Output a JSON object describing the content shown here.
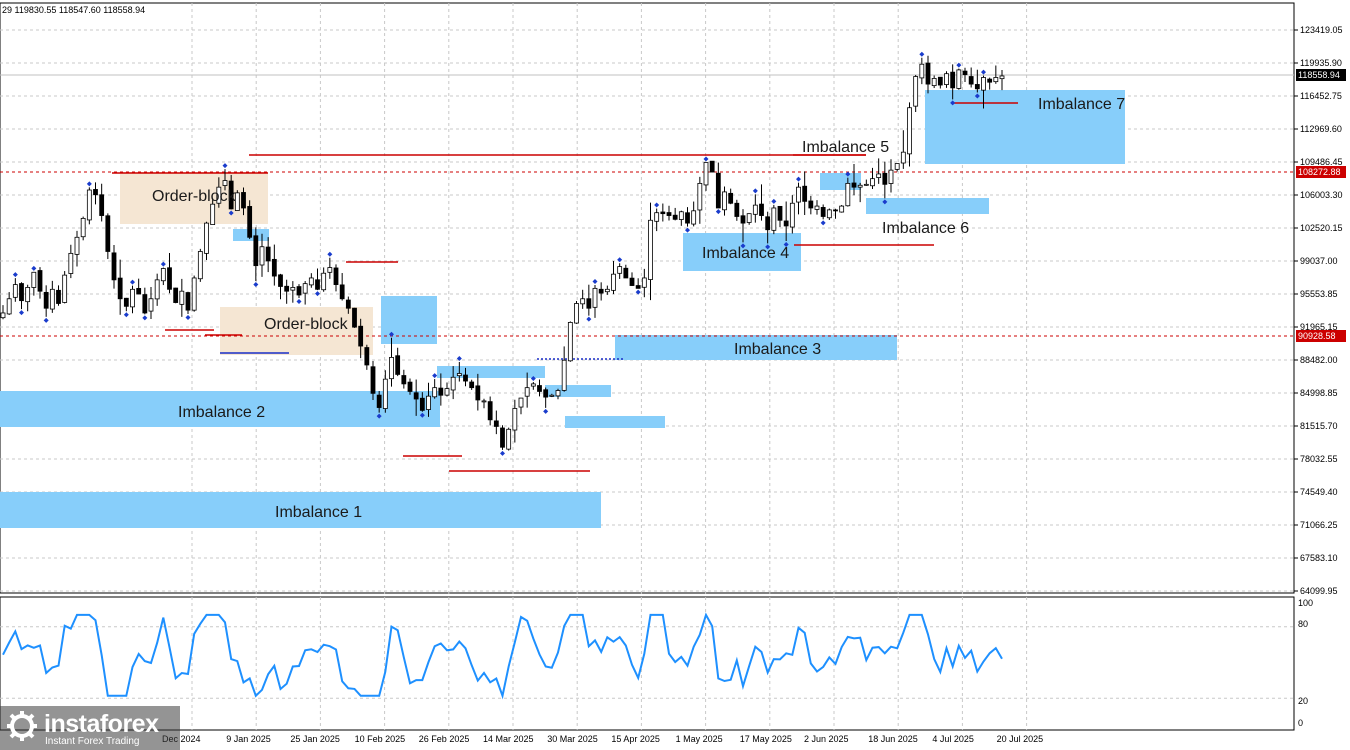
{
  "header": {
    "ohlc": "29 119830.55 118547.60 118558.94"
  },
  "price_axis": {
    "ticks": [
      "123419.05",
      "119935.90",
      "116452.75",
      "112969.60",
      "109486.45",
      "106003.30",
      "102520.15",
      "99037.00",
      "95553.85",
      "91965.15",
      "88482.00",
      "84998.85",
      "81515.70",
      "78032.55",
      "74549.40",
      "71066.25",
      "67583.10",
      "64099.95"
    ],
    "current_price_label": "118558.94",
    "level_labels": [
      "108272.88",
      "90928.58"
    ]
  },
  "time_axis": {
    "labels": [
      "Dec 2024",
      "9 Jan 2025",
      "25 Jan 2025",
      "10 Feb 2025",
      "26 Feb 2025",
      "14 Mar 2025",
      "30 Mar 2025",
      "15 Apr 2025",
      "1 May 2025",
      "17 May 2025",
      "2 Jun 2025",
      "18 Jun 2025",
      "4 Jul 2025",
      "20 Jul 2025"
    ]
  },
  "indicator_axis": {
    "ticks": [
      "100",
      "80",
      "20",
      "0"
    ]
  },
  "annotations": {
    "imbalance_1": "Imbalance 1",
    "imbalance_2": "Imbalance 2",
    "imbalance_3": "Imbalance 3",
    "imbalance_4": "Imbalance 4",
    "imbalance_5": "Imbalance 5",
    "imbalance_6": "Imbalance 6",
    "imbalance_7": "Imbalance 7",
    "order_block_1": "Order-block",
    "order_block_2": "Order-block"
  },
  "logo": {
    "brand": "instaforex",
    "tagline": "Instant Forex Trading"
  },
  "colors": {
    "imbalance": "#87cefa",
    "order_block": "#f5e6d3",
    "level_line": "#cc0000",
    "candle": "#000000",
    "fractal": "#1a3ccc",
    "indicator_line": "#1e90ff",
    "current_price_bg": "#000000",
    "level_label_bg": "#cc0000"
  },
  "chart_data": {
    "type": "candlestick",
    "symbol_quote": "29 119830.55 118547.60 118558.94",
    "current_price": 118558.94,
    "y_range": [
      64099.95,
      123419.05
    ],
    "horizontal_levels": [
      108272.88,
      90928.58
    ],
    "close_series": [
      93500,
      95000,
      96500,
      94800,
      96200,
      97800,
      95800,
      94000,
      96000,
      94500,
      97500,
      99800,
      101500,
      103500,
      106500,
      106000,
      103800,
      100000,
      97000,
      95000,
      94200,
      96000,
      95500,
      93500,
      95000,
      97000,
      98200,
      96000,
      94600,
      95800,
      93800,
      97200,
      100000,
      103000,
      105000,
      106800,
      107500,
      104500,
      106200,
      104600,
      101500,
      98500,
      100500,
      99000,
      97400,
      96300,
      95800,
      96200,
      95400,
      96600,
      97200,
      96000,
      97700,
      98300,
      96500,
      95000,
      94000,
      92000,
      90000,
      88000,
      85000,
      83500,
      86500,
      88800,
      87000,
      86000,
      85200,
      84400,
      83200,
      84700,
      85600,
      84800,
      85500,
      86700,
      87100,
      86300,
      85600,
      84300,
      84200,
      82200,
      81500,
      79300,
      81200,
      83400,
      84500,
      85600,
      86000,
      85200,
      84600,
      84800,
      85300,
      88500,
      92500,
      94500,
      95000,
      94000,
      96100,
      95600,
      96000,
      97600,
      98400,
      97200,
      96400,
      96100,
      97200,
      103300,
      104100,
      104000,
      103800,
      103400,
      104200,
      103000,
      104300,
      107200,
      109400,
      108400,
      104600,
      106300,
      105100,
      103700,
      103000,
      104000,
      104900,
      103800,
      102300,
      104600,
      103300,
      102700,
      105100,
      106800,
      105300,
      104600,
      104800,
      103700,
      104400,
      104300,
      104800,
      107200,
      106800,
      107000,
      107100,
      107700,
      108200,
      107100,
      108600,
      109300,
      110500,
      115200,
      118500,
      119800,
      117700,
      118300,
      117600,
      118800,
      117300,
      119200,
      118700,
      117700,
      117200,
      118400,
      117900,
      118400,
      118559
    ]
  }
}
